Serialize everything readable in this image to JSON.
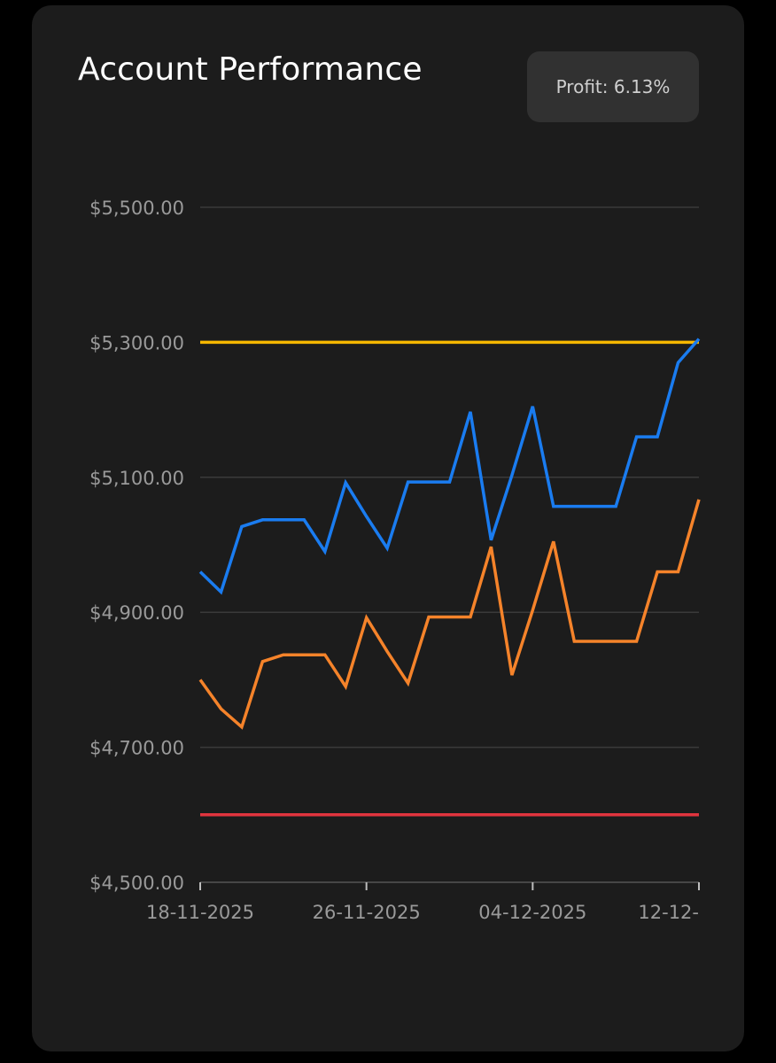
{
  "card": {
    "title": "Account Performance",
    "profit_label": "Profit: 6.13%"
  },
  "chart_data": {
    "type": "line",
    "title": "Account Performance",
    "xlabel": "",
    "ylabel": "",
    "ylim": [
      4500,
      5500
    ],
    "y_ticks": [
      "$4,500.00",
      "$4,700.00",
      "$4,900.00",
      "$5,100.00",
      "$5,300.00",
      "$5,500.00"
    ],
    "y_tick_values": [
      4500,
      4700,
      4900,
      5100,
      5300,
      5500
    ],
    "x_ticks": [
      "18-11-2025",
      "26-11-2025",
      "04-12-2025",
      "12-12-"
    ],
    "x_tick_index": [
      0,
      8,
      16,
      24
    ],
    "x_count": 25,
    "grid": true,
    "reference_lines": [
      {
        "value": 5300,
        "color": "#f5b700"
      },
      {
        "value": 4600,
        "color": "#e0343e"
      }
    ],
    "series": [
      {
        "color": "#1a7cf0",
        "values": [
          4960,
          4930,
          5027,
          5037,
          5037,
          5037,
          4990,
          5092,
          5042,
          4995,
          5093,
          5093,
          5093,
          5197,
          5007,
          5103,
          5205,
          5057,
          5057,
          5057,
          5057,
          5160,
          5160,
          5270,
          5305
        ]
      },
      {
        "color": "#f5832a",
        "values": [
          4800,
          4757,
          4730,
          4827,
          4837,
          4837,
          4837,
          4790,
          4892,
          4842,
          4795,
          4893,
          4893,
          4893,
          4997,
          4807,
          4903,
          5005,
          4857,
          4857,
          4857,
          4857,
          4960,
          4960,
          5067
        ]
      }
    ]
  }
}
